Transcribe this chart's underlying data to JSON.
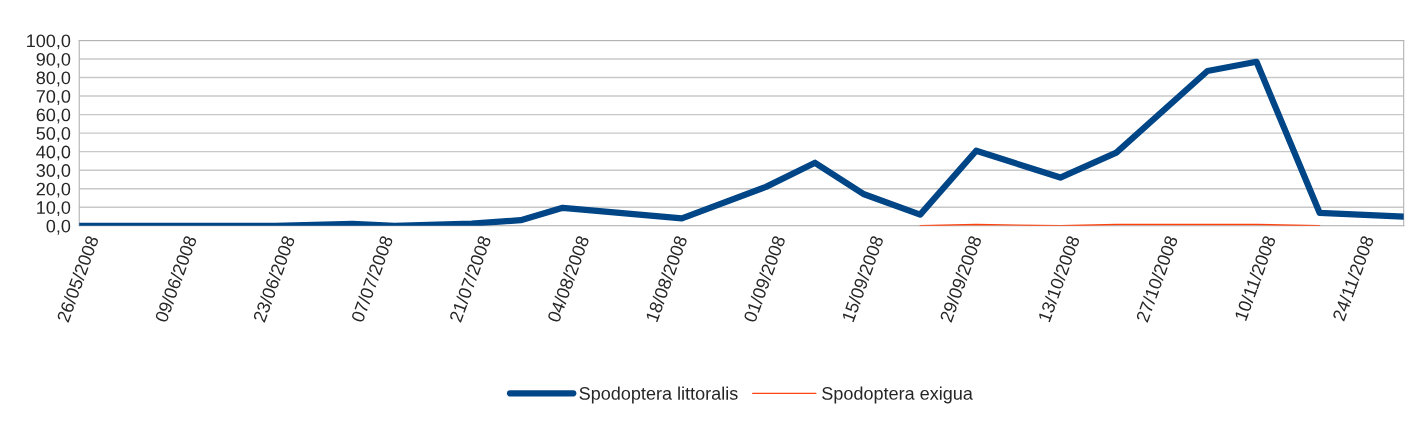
{
  "chart_data": {
    "type": "line",
    "ylim": [
      0,
      100
    ],
    "yticks": [
      {
        "value": 0,
        "label": "0,0"
      },
      {
        "value": 10,
        "label": "10,0"
      },
      {
        "value": 20,
        "label": "20,0"
      },
      {
        "value": 30,
        "label": "30,0"
      },
      {
        "value": 40,
        "label": "40,0"
      },
      {
        "value": 50,
        "label": "50,0"
      },
      {
        "value": 60,
        "label": "60,0"
      },
      {
        "value": 70,
        "label": "70,0"
      },
      {
        "value": 80,
        "label": "80,0"
      },
      {
        "value": 90,
        "label": "90,0"
      },
      {
        "value": 100,
        "label": "100,0"
      }
    ],
    "xlim": [
      "2008-05-26",
      "2008-12-01"
    ],
    "xticks": [
      {
        "value": "2008-05-26",
        "label": "26/05/2008"
      },
      {
        "value": "2008-06-09",
        "label": "09/06/2008"
      },
      {
        "value": "2008-06-23",
        "label": "23/06/2008"
      },
      {
        "value": "2008-07-07",
        "label": "07/07/2008"
      },
      {
        "value": "2008-07-21",
        "label": "21/07/2008"
      },
      {
        "value": "2008-08-04",
        "label": "04/08/2008"
      },
      {
        "value": "2008-08-18",
        "label": "18/08/2008"
      },
      {
        "value": "2008-09-01",
        "label": "01/09/2008"
      },
      {
        "value": "2008-09-15",
        "label": "15/09/2008"
      },
      {
        "value": "2008-09-29",
        "label": "29/09/2008"
      },
      {
        "value": "2008-10-13",
        "label": "13/10/2008"
      },
      {
        "value": "2008-10-27",
        "label": "27/10/2008"
      },
      {
        "value": "2008-11-10",
        "label": "10/11/2008"
      },
      {
        "value": "2008-11-24",
        "label": "24/11/2008"
      }
    ],
    "grid": "y",
    "legend": "bottom",
    "marker": "none",
    "series": [
      {
        "name": "Spodoptera littoralis",
        "color": "#004586",
        "x": [
          "2008-05-26",
          "2008-06-23",
          "2008-07-04",
          "2008-07-10",
          "2008-07-21",
          "2008-07-28",
          "2008-08-03",
          "2008-08-20",
          "2008-09-01",
          "2008-09-08",
          "2008-09-15",
          "2008-09-23",
          "2008-10-01",
          "2008-10-13",
          "2008-10-21",
          "2008-11-03",
          "2008-11-10",
          "2008-11-19",
          "2008-12-01"
        ],
        "values": [
          0,
          0,
          1.0,
          0,
          1.2,
          3,
          9.7,
          4,
          21,
          34,
          17,
          6,
          40.5,
          26,
          39.5,
          83.5,
          88.5,
          7,
          5
        ]
      },
      {
        "name": "Spodoptera exigua",
        "color": "#ff420e",
        "x": [
          "2008-09-23",
          "2008-10-01",
          "2008-10-13",
          "2008-10-21",
          "2008-11-03",
          "2008-11-10",
          "2008-11-19"
        ],
        "values": [
          0,
          0.7,
          0,
          0.7,
          0.7,
          0.7,
          0
        ]
      }
    ]
  }
}
